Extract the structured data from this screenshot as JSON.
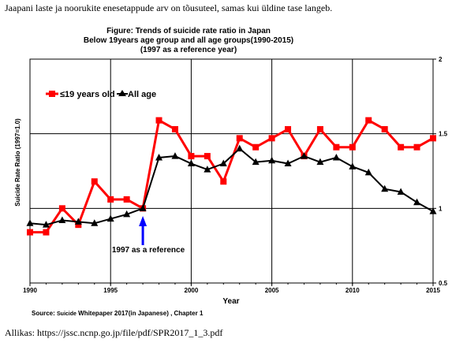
{
  "caption_top": "Jaapani laste ja noorukite enesetappude arv on tõusuteel, samas kui üldine tase langeb.",
  "caption_bottom": "Allikas: https://jssc.ncnp.go.jp/file/pdf/SPR2017_1_3.pdf",
  "chart_data": {
    "type": "line",
    "title": [
      "Figure: Trends of suicide rate ratio in Japan",
      "Below 19years age group and all age groups(1990-2015)",
      "(1997 as a reference year)"
    ],
    "xlabel": "Year",
    "ylabel": "Suicide Rate Ratio (1997=1.0)",
    "xlim": [
      1990,
      2015
    ],
    "ylim": [
      0.5,
      2
    ],
    "x_ticks": [
      "1990",
      "1995",
      "2000",
      "2005",
      "2010",
      "2015"
    ],
    "y_ticks": [
      "0.5",
      "1",
      "1.5",
      "2"
    ],
    "grid": true,
    "legend_position": "top-left",
    "x": [
      1990,
      1991,
      1992,
      1993,
      1994,
      1995,
      1996,
      1997,
      1998,
      1999,
      2000,
      2001,
      2002,
      2003,
      2004,
      2005,
      2006,
      2007,
      2008,
      2009,
      2010,
      2011,
      2012,
      2013,
      2014,
      2015
    ],
    "series": [
      {
        "name": "≤19 years old",
        "color": "#ff0000",
        "marker": "square",
        "values": [
          0.84,
          0.84,
          1.0,
          0.89,
          1.18,
          1.06,
          1.06,
          1.0,
          1.59,
          1.53,
          1.35,
          1.35,
          1.18,
          1.47,
          1.41,
          1.47,
          1.53,
          1.35,
          1.53,
          1.41,
          1.41,
          1.59,
          1.53,
          1.41,
          1.41,
          1.47
        ]
      },
      {
        "name": "All age",
        "color": "#000000",
        "marker": "triangle",
        "values": [
          0.9,
          0.89,
          0.92,
          0.91,
          0.9,
          0.93,
          0.96,
          1.0,
          1.34,
          1.35,
          1.3,
          1.26,
          1.3,
          1.4,
          1.31,
          1.32,
          1.3,
          1.35,
          1.31,
          1.34,
          1.28,
          1.24,
          1.13,
          1.11,
          1.04,
          0.98
        ]
      }
    ],
    "annotation": {
      "text": "1997 as a reference",
      "x": 1997,
      "arrow_color": "#0000ff"
    },
    "source": {
      "prefix": "Source: ",
      "name": "Suicide",
      "rest": " Whitepaper 2017(in Japanese) , Chapter 1"
    }
  }
}
